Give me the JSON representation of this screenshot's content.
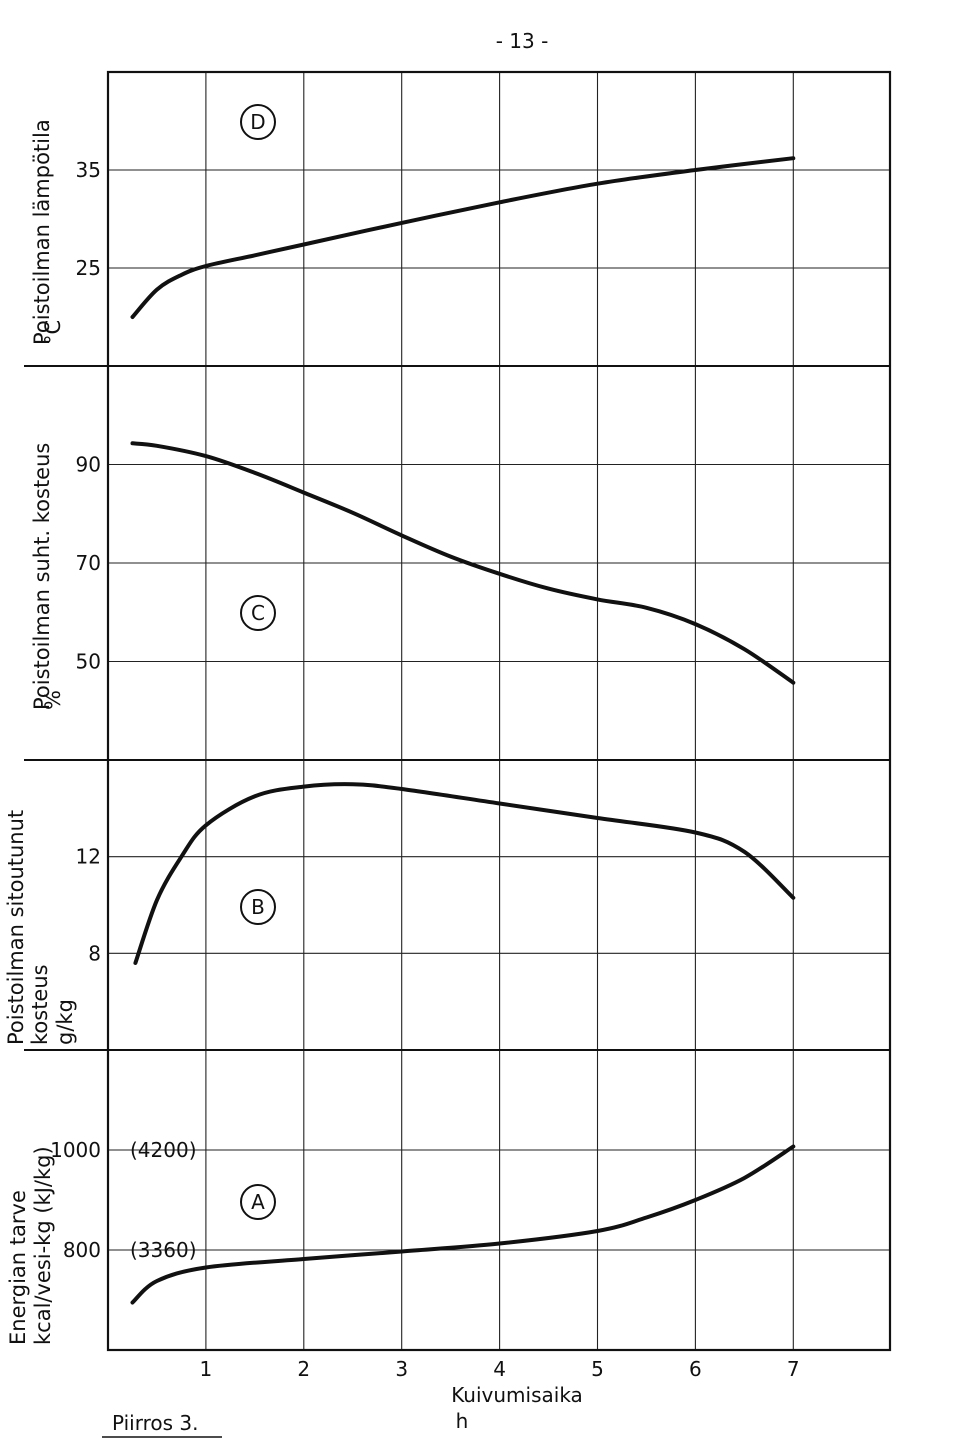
{
  "page_number": "- 13 -",
  "caption": "Piirros 3.",
  "chart_data": {
    "type": "line",
    "x_axis": {
      "label": "Kuivumisaika",
      "unit": "h",
      "range": [
        0,
        8
      ],
      "ticks": [
        "1",
        "2",
        "3",
        "4",
        "5",
        "6",
        "7"
      ]
    },
    "panels": [
      {
        "id": "D",
        "marker": "D",
        "ylabel": [
          "Poistoilman lämpötila",
          "°C"
        ],
        "yrange": [
          15,
          45
        ],
        "gridlines": [
          25,
          35
        ],
        "ticks": [
          "25",
          "35"
        ],
        "series": [
          {
            "x": [
              0.25,
              0.5,
              0.75,
              1,
              1.5,
              2,
              3,
              4,
              5,
              6,
              7
            ],
            "y": [
              20,
              22.8,
              24.3,
              25.2,
              26.3,
              27.4,
              29.6,
              31.7,
              33.6,
              35.0,
              36.2
            ]
          }
        ]
      },
      {
        "id": "C",
        "marker": "C",
        "ylabel": [
          "Poistoilman suht. kosteus",
          "%"
        ],
        "yrange": [
          30,
          110
        ],
        "gridlines": [
          50,
          70,
          90
        ],
        "ticks": [
          "50",
          "70",
          "90"
        ],
        "series": [
          {
            "x": [
              0.25,
              0.5,
              1,
              1.5,
              2,
              2.5,
              3,
              3.5,
              4,
              4.5,
              5,
              5.5,
              6,
              6.5,
              7
            ],
            "y": [
              94.3,
              93.8,
              91.7,
              88.3,
              84.3,
              80.2,
              75.6,
              71.3,
              67.8,
              64.8,
              62.6,
              60.9,
              57.6,
              52.5,
              45.7
            ]
          }
        ]
      },
      {
        "id": "B",
        "marker": "B",
        "ylabel": [
          "Poistoilman sitoutunut",
          "kosteus",
          "g/kg"
        ],
        "yrange": [
          4,
          16
        ],
        "gridlines": [
          8,
          12
        ],
        "ticks": [
          "8",
          "12"
        ],
        "series": [
          {
            "x": [
              0.28,
              0.5,
              0.75,
              1,
              1.5,
              2,
              2.5,
              3,
              4,
              5,
              6,
              6.5,
              7
            ],
            "y": [
              7.6,
              10.2,
              12.0,
              13.3,
              14.5,
              14.9,
              15.0,
              14.8,
              14.2,
              13.6,
              13.0,
              12.2,
              10.3
            ]
          }
        ]
      },
      {
        "id": "A",
        "marker": "A",
        "ylabel": [
          "Energian tarve",
          "kcal/vesi-kg (kJ/kg)"
        ],
        "yrange": [
          600,
          1200
        ],
        "gridlines": [
          800,
          1000
        ],
        "ticks": [
          "800",
          "1000"
        ],
        "tick_annotations": [
          "(3360)",
          "(4200)"
        ],
        "series": [
          {
            "x": [
              0.25,
              0.5,
              1,
              2,
              3,
              4,
              5,
              5.5,
              6,
              6.5,
              7
            ],
            "y": [
              695,
              738,
              765,
              782,
              797,
              813,
              838,
              865,
              900,
              944,
              1007
            ]
          }
        ]
      }
    ]
  }
}
